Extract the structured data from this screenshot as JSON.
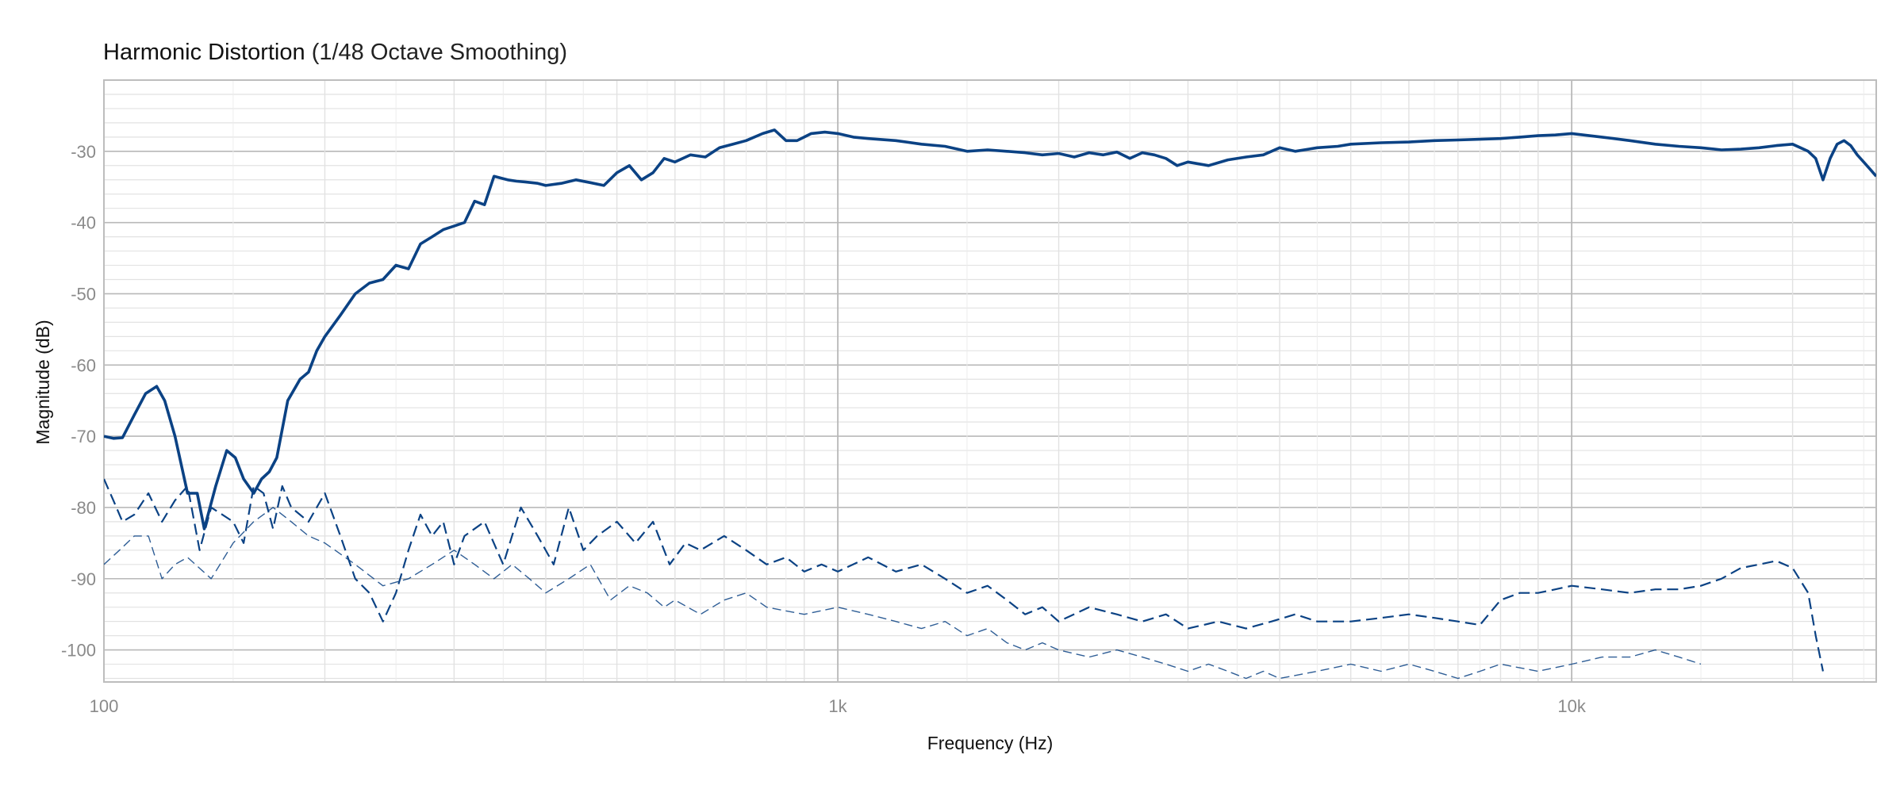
{
  "chart_data": {
    "type": "line",
    "title": "Harmonic Distortion",
    "subtitle": "(1/48 Octave Smoothing)",
    "xlabel": "Frequency (Hz)",
    "ylabel": "Magnitude (dB)",
    "x_scale": "log",
    "xlim": [
      100,
      26000
    ],
    "ylim": [
      -104.5,
      -20
    ],
    "x_ticks": [
      {
        "v": 100,
        "label": "100"
      },
      {
        "v": 1000,
        "label": "1k"
      },
      {
        "v": 10000,
        "label": "10k"
      }
    ],
    "y_ticks": [
      {
        "v": -30,
        "label": "-30"
      },
      {
        "v": -40,
        "label": "-40"
      },
      {
        "v": -50,
        "label": "-50"
      },
      {
        "v": -60,
        "label": "-60"
      },
      {
        "v": -70,
        "label": "-70"
      },
      {
        "v": -80,
        "label": "-80"
      },
      {
        "v": -90,
        "label": "-90"
      },
      {
        "v": -100,
        "label": "-100"
      }
    ],
    "grid": true,
    "legend": "none",
    "colors": {
      "series": "#0b4284",
      "grid_major": "#b8b8b8",
      "grid_minor": "#e2e2e2"
    },
    "series": [
      {
        "style": "solid",
        "x": [
          100,
          103,
          106,
          110,
          114,
          118,
          121,
          125,
          130,
          134,
          137,
          142,
          147,
          151,
          155,
          160,
          164,
          168,
          172,
          178,
          185,
          190,
          195,
          200,
          210,
          220,
          230,
          240,
          250,
          260,
          270,
          280,
          290,
          300,
          310,
          320,
          330,
          340,
          355,
          365,
          375,
          390,
          400,
          420,
          440,
          460,
          480,
          500,
          520,
          540,
          560,
          580,
          600,
          630,
          660,
          690,
          720,
          750,
          790,
          820,
          850,
          880,
          920,
          960,
          1000,
          1050,
          1100,
          1200,
          1300,
          1400,
          1500,
          1600,
          1700,
          1800,
          1900,
          2000,
          2100,
          2200,
          2300,
          2400,
          2500,
          2600,
          2700,
          2800,
          2900,
          3000,
          3200,
          3400,
          3600,
          3800,
          4000,
          4200,
          4500,
          4800,
          5000,
          5500,
          6000,
          6500,
          7000,
          7500,
          8000,
          8500,
          9000,
          9500,
          10000,
          11000,
          12000,
          13000,
          14000,
          15000,
          16000,
          17000,
          18000,
          19000,
          20000,
          20500,
          21000,
          21500,
          22000,
          22500,
          23000,
          23500,
          24000,
          24500,
          25000,
          25500,
          26000
        ],
        "values": [
          -70,
          -70.3,
          -70.2,
          -67,
          -64,
          -63,
          -65,
          -70,
          -78,
          -78,
          -83,
          -77,
          -72,
          -73,
          -76,
          -78,
          -76,
          -75,
          -73,
          -65,
          -62,
          -61,
          -58,
          -56,
          -53,
          -50,
          -48.5,
          -48,
          -46,
          -46.5,
          -43,
          -42,
          -41,
          -40.5,
          -40,
          -37,
          -37.5,
          -33.5,
          -34,
          -34.2,
          -34.3,
          -34.5,
          -34.8,
          -34.5,
          -34,
          -34.4,
          -34.8,
          -33,
          -32,
          -34,
          -33,
          -31,
          -31.5,
          -30.5,
          -30.8,
          -29.5,
          -29,
          -28.5,
          -27.5,
          -27,
          -28.5,
          -28.5,
          -27.5,
          -27.3,
          -27.5,
          -28,
          -28.2,
          -28.5,
          -29,
          -29.3,
          -30,
          -29.8,
          -30,
          -30.2,
          -30.5,
          -30.3,
          -30.8,
          -30.2,
          -30.5,
          -30.1,
          -31,
          -30.2,
          -30.5,
          -31,
          -32,
          -31.5,
          -32,
          -31.2,
          -30.8,
          -30.5,
          -29.5,
          -30,
          -29.5,
          -29.3,
          -29,
          -28.8,
          -28.7,
          -28.5,
          -28.4,
          -28.3,
          -28.2,
          -28,
          -27.8,
          -27.7,
          -27.5,
          -28,
          -28.5,
          -29,
          -29.3,
          -29.5,
          -29.8,
          -29.7,
          -29.5,
          -29.2,
          -29,
          -29.5,
          -30,
          -31,
          -34,
          -31,
          -29,
          -28.5,
          -29.2,
          -30.5,
          -31.5,
          -32.5,
          -33.5
        ]
      },
      {
        "style": "dashed",
        "x": [
          100,
          103,
          106,
          110,
          115,
          120,
          125,
          130,
          135,
          140,
          150,
          155,
          160,
          165,
          170,
          175,
          180,
          190,
          200,
          210,
          220,
          230,
          240,
          250,
          260,
          270,
          280,
          290,
          300,
          310,
          330,
          350,
          370,
          390,
          410,
          430,
          450,
          470,
          500,
          530,
          560,
          590,
          620,
          650,
          700,
          750,
          800,
          850,
          900,
          950,
          1000,
          1100,
          1200,
          1300,
          1400,
          1500,
          1600,
          1700,
          1800,
          1900,
          2000,
          2200,
          2400,
          2600,
          2800,
          3000,
          3300,
          3600,
          3900,
          4200,
          4500,
          5000,
          5500,
          6000,
          6500,
          7000,
          7500,
          8000,
          8500,
          9000,
          9500,
          10000,
          11000,
          12000,
          13000,
          14000,
          15000,
          16000,
          17000,
          18000,
          19000,
          20000,
          21000,
          21500,
          22000
        ],
        "values": [
          -76,
          -79,
          -82,
          -81,
          -78,
          -82,
          -79,
          -77,
          -86,
          -80,
          -82,
          -85,
          -77,
          -78,
          -83,
          -77,
          -80,
          -82,
          -78,
          -84,
          -90,
          -92,
          -96,
          -92,
          -86,
          -81,
          -84,
          -82,
          -88,
          -84,
          -82,
          -88,
          -80,
          -84,
          -88,
          -80,
          -86,
          -84,
          -82,
          -85,
          -82,
          -88,
          -85,
          -86,
          -84,
          -86,
          -88,
          -87,
          -89,
          -88,
          -89,
          -87,
          -89,
          -88,
          -90,
          -92,
          -91,
          -93,
          -95,
          -94,
          -96,
          -94,
          -95,
          -96,
          -95,
          -97,
          -96,
          -97,
          -96,
          -95,
          -96,
          -96,
          -95.5,
          -95,
          -95.5,
          -96,
          -96.5,
          -93,
          -92,
          -92,
          -91.5,
          -91,
          -91.5,
          -92,
          -91.5,
          -91.5,
          -91,
          -90,
          -88.5,
          -88,
          -87.5,
          -88.5,
          -92,
          -98,
          -103
        ]
      },
      {
        "style": "dashed-thin",
        "x": [
          100,
          105,
          110,
          115,
          120,
          125,
          130,
          140,
          150,
          160,
          170,
          180,
          190,
          200,
          220,
          240,
          260,
          280,
          300,
          320,
          340,
          360,
          380,
          400,
          430,
          460,
          490,
          520,
          550,
          580,
          600,
          650,
          700,
          750,
          800,
          900,
          1000,
          1100,
          1200,
          1300,
          1400,
          1500,
          1600,
          1700,
          1800,
          1900,
          2000,
          2200,
          2400,
          2600,
          2800,
          3000,
          3200,
          3400,
          3600,
          3800,
          4000,
          4500,
          5000,
          5500,
          6000,
          6500,
          7000,
          7500,
          8000,
          9000,
          10000,
          11000,
          12000,
          13000,
          14000,
          14500,
          15000
        ],
        "values": [
          -88,
          -86,
          -84,
          -84,
          -90,
          -88,
          -87,
          -90,
          -85,
          -82,
          -80,
          -82,
          -84,
          -85,
          -88,
          -91,
          -90,
          -88,
          -86,
          -88,
          -90,
          -88,
          -90,
          -92,
          -90,
          -88,
          -93,
          -91,
          -92,
          -94,
          -93,
          -95,
          -93,
          -92,
          -94,
          -95,
          -94,
          -95,
          -96,
          -97,
          -96,
          -98,
          -97,
          -99,
          -100,
          -99,
          -100,
          -101,
          -100,
          -101,
          -102,
          -103,
          -102,
          -103,
          -104,
          -103,
          -104,
          -103,
          -102,
          -103,
          -102,
          -103,
          -104,
          -103,
          -102,
          -103,
          -102,
          -101,
          -101,
          -100,
          -101,
          -101.5,
          -102
        ]
      }
    ]
  }
}
